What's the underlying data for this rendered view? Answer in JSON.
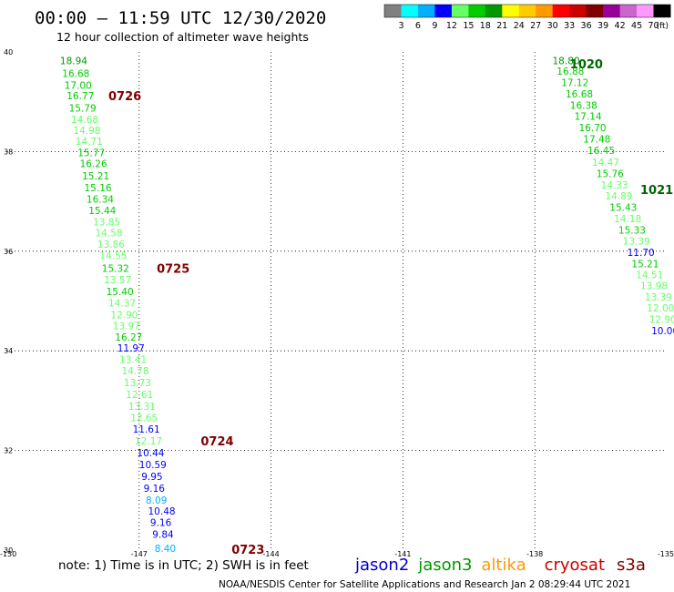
{
  "chart_data": {
    "type": "scatter",
    "title": "00:00 – 11:59 UTC 12/30/2020",
    "subtitle": "12 hour collection of altimeter wave heights",
    "note": "note: 1) Time is in UTC; 2) SWH is in feet",
    "credit": "NOAA/NESDIS Center for Satellite Applications and Research    Jan  2 08:29:44 UTC 2021",
    "xlim": [
      -150,
      -135
    ],
    "ylim": [
      30,
      40
    ],
    "x_ticks": [
      -150,
      -147,
      -144,
      -141,
      -138,
      -135
    ],
    "x_tick_labels": [
      "-150",
      "-147",
      "-144",
      "-141",
      "-138",
      "-135"
    ],
    "y_ticks": [
      30,
      32,
      34,
      36,
      38,
      40
    ],
    "y_tick_labels": [
      "30",
      "32",
      "34",
      "36",
      "38",
      "40"
    ],
    "grid": "dotted",
    "legend": {
      "unit_label": "(ft)",
      "labels": [
        "3",
        "6",
        "9",
        "12",
        "15",
        "18",
        "21",
        "24",
        "27",
        "30",
        "33",
        "36",
        "39",
        "42",
        "45",
        "70"
      ],
      "colors": [
        "#808080",
        "#00ffff",
        "#00b0ff",
        "#0000ff",
        "#66ff66",
        "#00cc00",
        "#009900",
        "#ffff00",
        "#ffcc00",
        "#ff9900",
        "#ff0000",
        "#cc0000",
        "#800000",
        "#990099",
        "#cc66cc",
        "#ff99ff",
        "#000000"
      ]
    },
    "satellites": [
      {
        "name": "jason2",
        "color": "#0000cc"
      },
      {
        "name": "jason3",
        "color": "#009900"
      },
      {
        "name": "altika",
        "color": "#ff9900"
      },
      {
        "name": "cryosat",
        "color": "#cc0000"
      },
      {
        "name": "s3a",
        "color": "#800000"
      }
    ],
    "time_labels": [
      {
        "text": "0726",
        "x": -147.7,
        "y": 39.12,
        "color": "#800000"
      },
      {
        "text": "0725",
        "x": -146.6,
        "y": 35.66,
        "color": "#800000"
      },
      {
        "text": "0724",
        "x": -145.6,
        "y": 32.19,
        "color": "#800000"
      },
      {
        "text": "0723",
        "x": -144.9,
        "y": 30.02,
        "color": "#800000"
      },
      {
        "text": "1020",
        "x": -137.2,
        "y": 39.76,
        "color": "#006600"
      },
      {
        "text": "1021",
        "x": -135.6,
        "y": 37.24,
        "color": "#006600"
      }
    ],
    "series": [
      {
        "name": "s3a",
        "points": [
          {
            "x": -148.8,
            "y": 39.83,
            "v": 18.94
          },
          {
            "x": -148.75,
            "y": 39.57,
            "v": 16.68
          },
          {
            "x": -148.7,
            "y": 39.33,
            "v": 17.0
          },
          {
            "x": -148.65,
            "y": 39.12,
            "v": 16.77
          },
          {
            "x": -148.6,
            "y": 38.88,
            "v": 15.79
          },
          {
            "x": -148.55,
            "y": 38.65,
            "v": 14.68
          },
          {
            "x": -148.5,
            "y": 38.43,
            "v": 14.98
          },
          {
            "x": -148.45,
            "y": 38.21,
            "v": 14.71
          },
          {
            "x": -148.4,
            "y": 37.98,
            "v": 15.77
          },
          {
            "x": -148.35,
            "y": 37.76,
            "v": 16.26
          },
          {
            "x": -148.3,
            "y": 37.51,
            "v": 15.21
          },
          {
            "x": -148.25,
            "y": 37.28,
            "v": 15.16
          },
          {
            "x": -148.2,
            "y": 37.05,
            "v": 16.34
          },
          {
            "x": -148.15,
            "y": 36.82,
            "v": 15.44
          },
          {
            "x": -148.05,
            "y": 36.59,
            "v": 13.85
          },
          {
            "x": -148.0,
            "y": 36.37,
            "v": 14.58
          },
          {
            "x": -147.95,
            "y": 36.14,
            "v": 13.86
          },
          {
            "x": -147.9,
            "y": 35.91,
            "v": 14.55
          },
          {
            "x": -147.85,
            "y": 35.66,
            "v": 15.32
          },
          {
            "x": -147.8,
            "y": 35.43,
            "v": 13.57
          },
          {
            "x": -147.75,
            "y": 35.19,
            "v": 15.4
          },
          {
            "x": -147.7,
            "y": 34.96,
            "v": 14.37
          },
          {
            "x": -147.65,
            "y": 34.73,
            "v": 12.9
          },
          {
            "x": -147.6,
            "y": 34.51,
            "v": 13.97
          },
          {
            "x": -147.55,
            "y": 34.28,
            "v": 16.27
          },
          {
            "x": -147.5,
            "y": 34.06,
            "v": 11.97
          },
          {
            "x": -147.45,
            "y": 33.83,
            "v": 13.41
          },
          {
            "x": -147.4,
            "y": 33.6,
            "v": 14.78
          },
          {
            "x": -147.35,
            "y": 33.36,
            "v": 13.73
          },
          {
            "x": -147.3,
            "y": 33.13,
            "v": 12.61
          },
          {
            "x": -147.25,
            "y": 32.89,
            "v": 13.31
          },
          {
            "x": -147.2,
            "y": 32.66,
            "v": 12.65
          },
          {
            "x": -147.15,
            "y": 32.43,
            "v": 11.61
          },
          {
            "x": -147.1,
            "y": 32.19,
            "v": 12.17
          },
          {
            "x": -147.05,
            "y": 31.96,
            "v": 10.44
          },
          {
            "x": -147.0,
            "y": 31.72,
            "v": 10.59
          },
          {
            "x": -146.95,
            "y": 31.48,
            "v": 9.95
          },
          {
            "x": -146.9,
            "y": 31.24,
            "v": 9.16
          },
          {
            "x": -146.85,
            "y": 31.01,
            "v": 8.09
          },
          {
            "x": -146.8,
            "y": 30.79,
            "v": 10.48
          },
          {
            "x": -146.75,
            "y": 30.56,
            "v": 9.16
          },
          {
            "x": -146.7,
            "y": 30.32,
            "v": 9.84
          },
          {
            "x": -146.65,
            "y": 30.04,
            "v": 8.4
          }
        ]
      },
      {
        "name": "jason3",
        "points": [
          {
            "x": -137.6,
            "y": 39.83,
            "v": 18.8
          },
          {
            "x": -137.5,
            "y": 39.62,
            "v": 16.88
          },
          {
            "x": -137.4,
            "y": 39.39,
            "v": 17.12
          },
          {
            "x": -137.3,
            "y": 39.16,
            "v": 16.68
          },
          {
            "x": -137.2,
            "y": 38.93,
            "v": 16.38
          },
          {
            "x": -137.1,
            "y": 38.71,
            "v": 17.14
          },
          {
            "x": -137.0,
            "y": 38.48,
            "v": 16.7
          },
          {
            "x": -136.9,
            "y": 38.25,
            "v": 17.48
          },
          {
            "x": -136.8,
            "y": 38.03,
            "v": 16.45
          },
          {
            "x": -136.7,
            "y": 37.79,
            "v": 14.47
          },
          {
            "x": -136.6,
            "y": 37.56,
            "v": 15.76
          },
          {
            "x": -136.5,
            "y": 37.33,
            "v": 14.33
          },
          {
            "x": -136.4,
            "y": 37.11,
            "v": 14.89
          },
          {
            "x": -136.3,
            "y": 36.88,
            "v": 15.43
          },
          {
            "x": -136.2,
            "y": 36.65,
            "v": 14.18
          },
          {
            "x": -136.1,
            "y": 36.43,
            "v": 15.33
          },
          {
            "x": -136.0,
            "y": 36.21,
            "v": 13.39
          },
          {
            "x": -135.9,
            "y": 35.98,
            "v": 11.7
          },
          {
            "x": -135.8,
            "y": 35.75,
            "v": 15.21
          },
          {
            "x": -135.7,
            "y": 35.53,
            "v": 14.51
          },
          {
            "x": -135.6,
            "y": 35.31,
            "v": 13.98
          },
          {
            "x": -135.5,
            "y": 35.08,
            "v": 13.39
          },
          {
            "x": -135.45,
            "y": 34.86,
            "v": 12.0
          },
          {
            "x": -135.4,
            "y": 34.63,
            "v": 12.9
          },
          {
            "x": -135.35,
            "y": 34.41,
            "v": 10.0
          }
        ]
      }
    ]
  }
}
